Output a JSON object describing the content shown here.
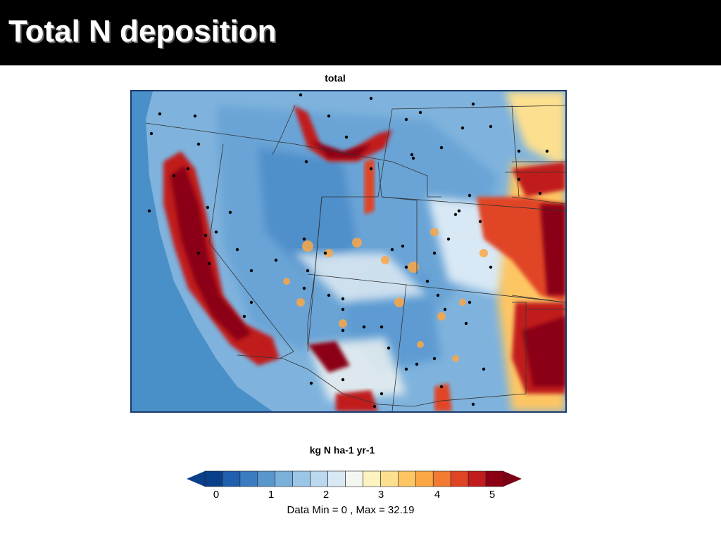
{
  "slide": {
    "title": "Total N deposition"
  },
  "panel": {
    "title": "total"
  },
  "legend": {
    "unit_label": "kg N ha-1 yr-1",
    "tick_labels": [
      "0",
      "1",
      "2",
      "3",
      "4",
      "5"
    ],
    "data_range_text": "Data Min =   0 , Max =   32.19",
    "colors": [
      "#0a3f8a",
      "#1f5fae",
      "#3a7cc0",
      "#5896cc",
      "#7ab0da",
      "#9cc6e5",
      "#bcd8ee",
      "#d8e8f4",
      "#f4f6f2",
      "#fdf3c0",
      "#fde08f",
      "#fdc663",
      "#fba746",
      "#f27a33",
      "#e04426",
      "#c11b1e",
      "#8b0015"
    ],
    "extend_low_color": "#0a3f8a",
    "extend_high_color": "#7a0016"
  },
  "map": {
    "region": "Western United States",
    "background_ocean_color": "#4a90c8",
    "low_color": "#5a9fd3",
    "high_color": "#8b0015"
  }
}
